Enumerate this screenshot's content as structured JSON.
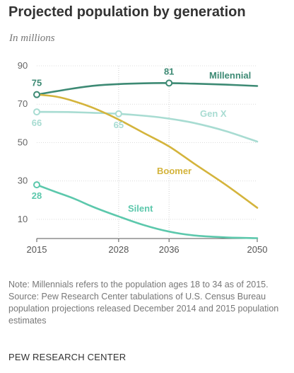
{
  "title": "Projected population by generation",
  "subtitle": "In millions",
  "chart_data": {
    "type": "line",
    "x": [
      2015,
      2028,
      2036,
      2050
    ],
    "ylim": [
      0,
      90
    ],
    "yticks": [
      10,
      30,
      50,
      70,
      90
    ],
    "xticks": [
      2015,
      2028,
      2036,
      2050
    ],
    "grid": true,
    "series": [
      {
        "name": "Millennial",
        "color": "#3d8a74",
        "points": [
          [
            2015,
            75
          ],
          [
            2020,
            77.8
          ],
          [
            2024,
            79.6
          ],
          [
            2028,
            80.5
          ],
          [
            2032,
            80.9
          ],
          [
            2036,
            81
          ],
          [
            2040,
            80.7
          ],
          [
            2045,
            80.2
          ],
          [
            2050,
            79.5
          ]
        ],
        "labels": [
          {
            "x": 2015,
            "y": 75,
            "text": "75"
          },
          {
            "x": 2036,
            "y": 81,
            "text": "81"
          }
        ]
      },
      {
        "name": "Gen X",
        "color": "#a8dcd2",
        "points": [
          [
            2015,
            66
          ],
          [
            2020,
            65.9
          ],
          [
            2024,
            65.5
          ],
          [
            2028,
            65
          ],
          [
            2032,
            64
          ],
          [
            2036,
            62.5
          ],
          [
            2040,
            60.2
          ],
          [
            2045,
            56
          ],
          [
            2050,
            50.5
          ]
        ],
        "labels": [
          {
            "x": 2015,
            "y": 66,
            "text": "66"
          },
          {
            "x": 2028,
            "y": 65,
            "text": "65"
          }
        ]
      },
      {
        "name": "Boomer",
        "color": "#d4b43c",
        "points": [
          [
            2015,
            75
          ],
          [
            2018,
            74
          ],
          [
            2021,
            71.5
          ],
          [
            2024,
            68
          ],
          [
            2028,
            62
          ],
          [
            2032,
            55
          ],
          [
            2036,
            48
          ],
          [
            2040,
            39
          ],
          [
            2045,
            28
          ],
          [
            2050,
            16
          ]
        ],
        "labels": []
      },
      {
        "name": "Silent",
        "color": "#5cc8ac",
        "points": [
          [
            2015,
            28
          ],
          [
            2018,
            24.3
          ],
          [
            2021,
            20.7
          ],
          [
            2024,
            16.4
          ],
          [
            2028,
            11.5
          ],
          [
            2032,
            7
          ],
          [
            2036,
            3.6
          ],
          [
            2040,
            1.6
          ],
          [
            2045,
            0.6
          ],
          [
            2050,
            0.2
          ]
        ],
        "labels": [
          {
            "x": 2015,
            "y": 28,
            "text": "28"
          }
        ]
      }
    ]
  },
  "notes": {
    "note": "Note: Millennials refers to the population ages 18 to 34 as of 2015.",
    "source": "Source: Pew Research Center tabulations of U.S. Census Bureau population projections released December 2014 and 2015 population estimates"
  },
  "credit": "PEW RESEARCH CENTER"
}
